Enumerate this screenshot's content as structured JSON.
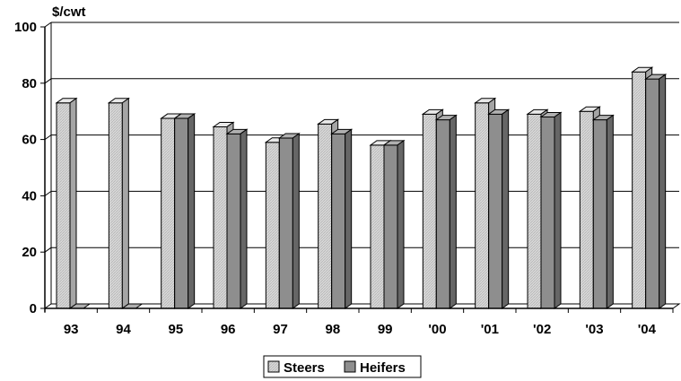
{
  "chart_data": {
    "type": "bar",
    "title": "",
    "ylabel": "$/cwt",
    "xlabel": "",
    "ylim": [
      0,
      100
    ],
    "yticks": [
      0,
      20,
      40,
      60,
      80,
      100
    ],
    "grid": true,
    "legend_position": "bottom",
    "categories": [
      "93",
      "94",
      "95",
      "96",
      "97",
      "98",
      "99",
      "'00",
      "'01",
      "'02",
      "'03",
      "'04"
    ],
    "series": [
      {
        "name": "Steers",
        "values": [
          73,
          73,
          67.5,
          64.5,
          59,
          65.5,
          58,
          69,
          73,
          69,
          70,
          84
        ],
        "color": "#d4d4d4"
      },
      {
        "name": "Heifers",
        "values": [
          0,
          0,
          67.5,
          62,
          60.5,
          62,
          58,
          67,
          69,
          68,
          67,
          81.5
        ],
        "color": "#8e8e8e"
      }
    ]
  }
}
